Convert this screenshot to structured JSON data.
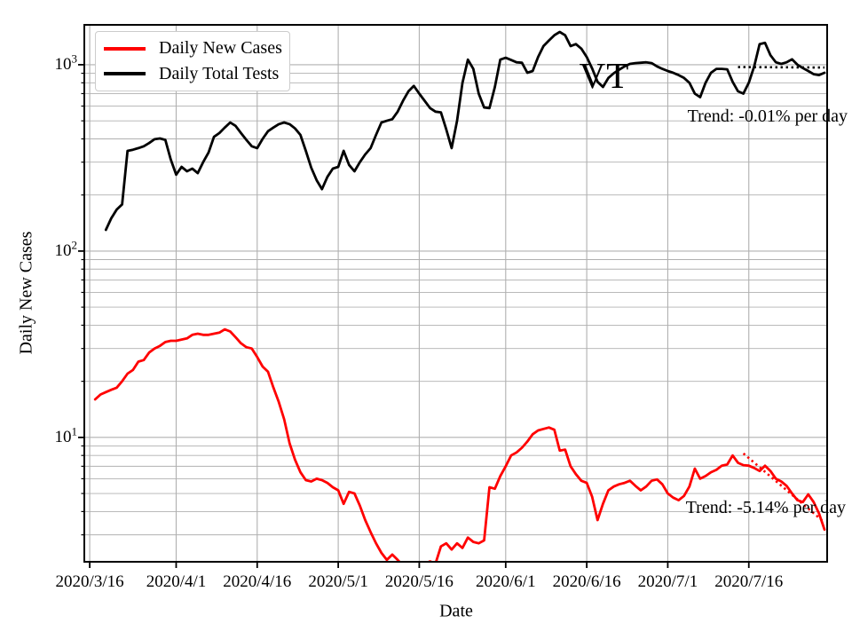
{
  "chart_data": {
    "type": "line",
    "title": "VT",
    "xlabel": "Date",
    "ylabel": "Daily New Cases",
    "ylog": true,
    "ylim": [
      2.15,
      1637
    ],
    "x_base_date": "2020/3/16",
    "xlim_days": [
      -1,
      136.5
    ],
    "grid": true,
    "grid_color": "#b0b0b0",
    "legend_position": "upper-left",
    "xticks": [
      "2020/3/16",
      "2020/4/1",
      "2020/4/16",
      "2020/5/1",
      "2020/5/16",
      "2020/6/1",
      "2020/6/16",
      "2020/7/1",
      "2020/7/16"
    ],
    "yticks": [
      {
        "value": 10,
        "base": "10",
        "exponent": "1"
      },
      {
        "value": 100,
        "base": "10",
        "exponent": "2"
      },
      {
        "value": 1000,
        "base": "10",
        "exponent": "3"
      }
    ],
    "start_date": "2020/3/17",
    "frequency": "daily",
    "series": [
      {
        "name": "Daily New Cases",
        "color": "#ff0000",
        "values": [
          16,
          17,
          17.5,
          18,
          18.5,
          20,
          22,
          23,
          25.5,
          26,
          28.5,
          30,
          31,
          32.5,
          33,
          33,
          33.5,
          34,
          35.5,
          36,
          35.5,
          35.5,
          36,
          36.5,
          38,
          37,
          34.5,
          32,
          30.5,
          30,
          27,
          24,
          22.5,
          18.5,
          15.5,
          12.5,
          9.3,
          7.6,
          6.5,
          5.9,
          5.8,
          6.0,
          5.9,
          5.7,
          5.4,
          5.2,
          4.4,
          5.1,
          5.0,
          4.3,
          3.6,
          3.1,
          2.7,
          2.4,
          2.2,
          2.35,
          2.2,
          2.05,
          2.0,
          2.0,
          2.05,
          2.1,
          2.16,
          2.1,
          2.6,
          2.7,
          2.5,
          2.7,
          2.55,
          2.9,
          2.75,
          2.7,
          2.8,
          5.4,
          5.3,
          6.2,
          7.0,
          8.0,
          8.3,
          8.8,
          9.5,
          10.4,
          10.9,
          11.1,
          11.3,
          11.0,
          8.5,
          8.6,
          7.0,
          6.35,
          5.85,
          5.7,
          4.8,
          3.6,
          4.4,
          5.2,
          5.45,
          5.6,
          5.7,
          5.85,
          5.5,
          5.2,
          5.45,
          5.85,
          5.95,
          5.6,
          5.0,
          4.75,
          4.6,
          4.85,
          5.45,
          6.8,
          6.0,
          6.2,
          6.5,
          6.7,
          7.05,
          7.15,
          8.0,
          7.3,
          7.1,
          7.05,
          6.85,
          6.6,
          7.05,
          6.6,
          6.0,
          5.8,
          5.5,
          5.0,
          4.6,
          4.5,
          4.95,
          4.5,
          3.9,
          3.2
        ]
      },
      {
        "name": "Daily Total Tests",
        "color": "#000000",
        "values": [
          null,
          null,
          130,
          150,
          167,
          178,
          345,
          350,
          357,
          365,
          380,
          398,
          402,
          395,
          310,
          257,
          283,
          268,
          277,
          262,
          300,
          338,
          410,
          430,
          460,
          490,
          470,
          430,
          395,
          365,
          357,
          400,
          440,
          460,
          480,
          490,
          480,
          455,
          420,
          345,
          280,
          240,
          215,
          250,
          277,
          283,
          345,
          290,
          268,
          300,
          330,
          357,
          420,
          490,
          500,
          510,
          560,
          640,
          720,
          770,
          700,
          640,
          585,
          560,
          555,
          450,
          357,
          500,
          800,
          1065,
          950,
          700,
          590,
          585,
          760,
          1065,
          1090,
          1060,
          1030,
          1025,
          905,
          925,
          1100,
          1260,
          1350,
          1440,
          1500,
          1440,
          1260,
          1290,
          1220,
          1100,
          955,
          810,
          760,
          850,
          900,
          940,
          980,
          1010,
          1020,
          1025,
          1030,
          1020,
          980,
          950,
          925,
          905,
          880,
          850,
          800,
          700,
          670,
          800,
          905,
          950,
          950,
          945,
          810,
          720,
          700,
          800,
          980,
          1290,
          1310,
          1125,
          1030,
          1010,
          1030,
          1070,
          1000,
          960,
          925,
          890,
          880,
          905
        ]
      }
    ],
    "trends": [
      {
        "name": "cases-trend",
        "color": "#ff0000",
        "label": "Trend: -5.14% per day",
        "start_date": "2020/7/15",
        "start_value": 8.2,
        "end_date": "2020/7/30",
        "end_value": 3.5
      },
      {
        "name": "tests-trend",
        "color": "#000000",
        "label": "Trend: -0.01% per day",
        "start_date": "2020/7/14",
        "start_value": 972,
        "end_date": "2020/7/30",
        "end_value": 966
      }
    ]
  }
}
